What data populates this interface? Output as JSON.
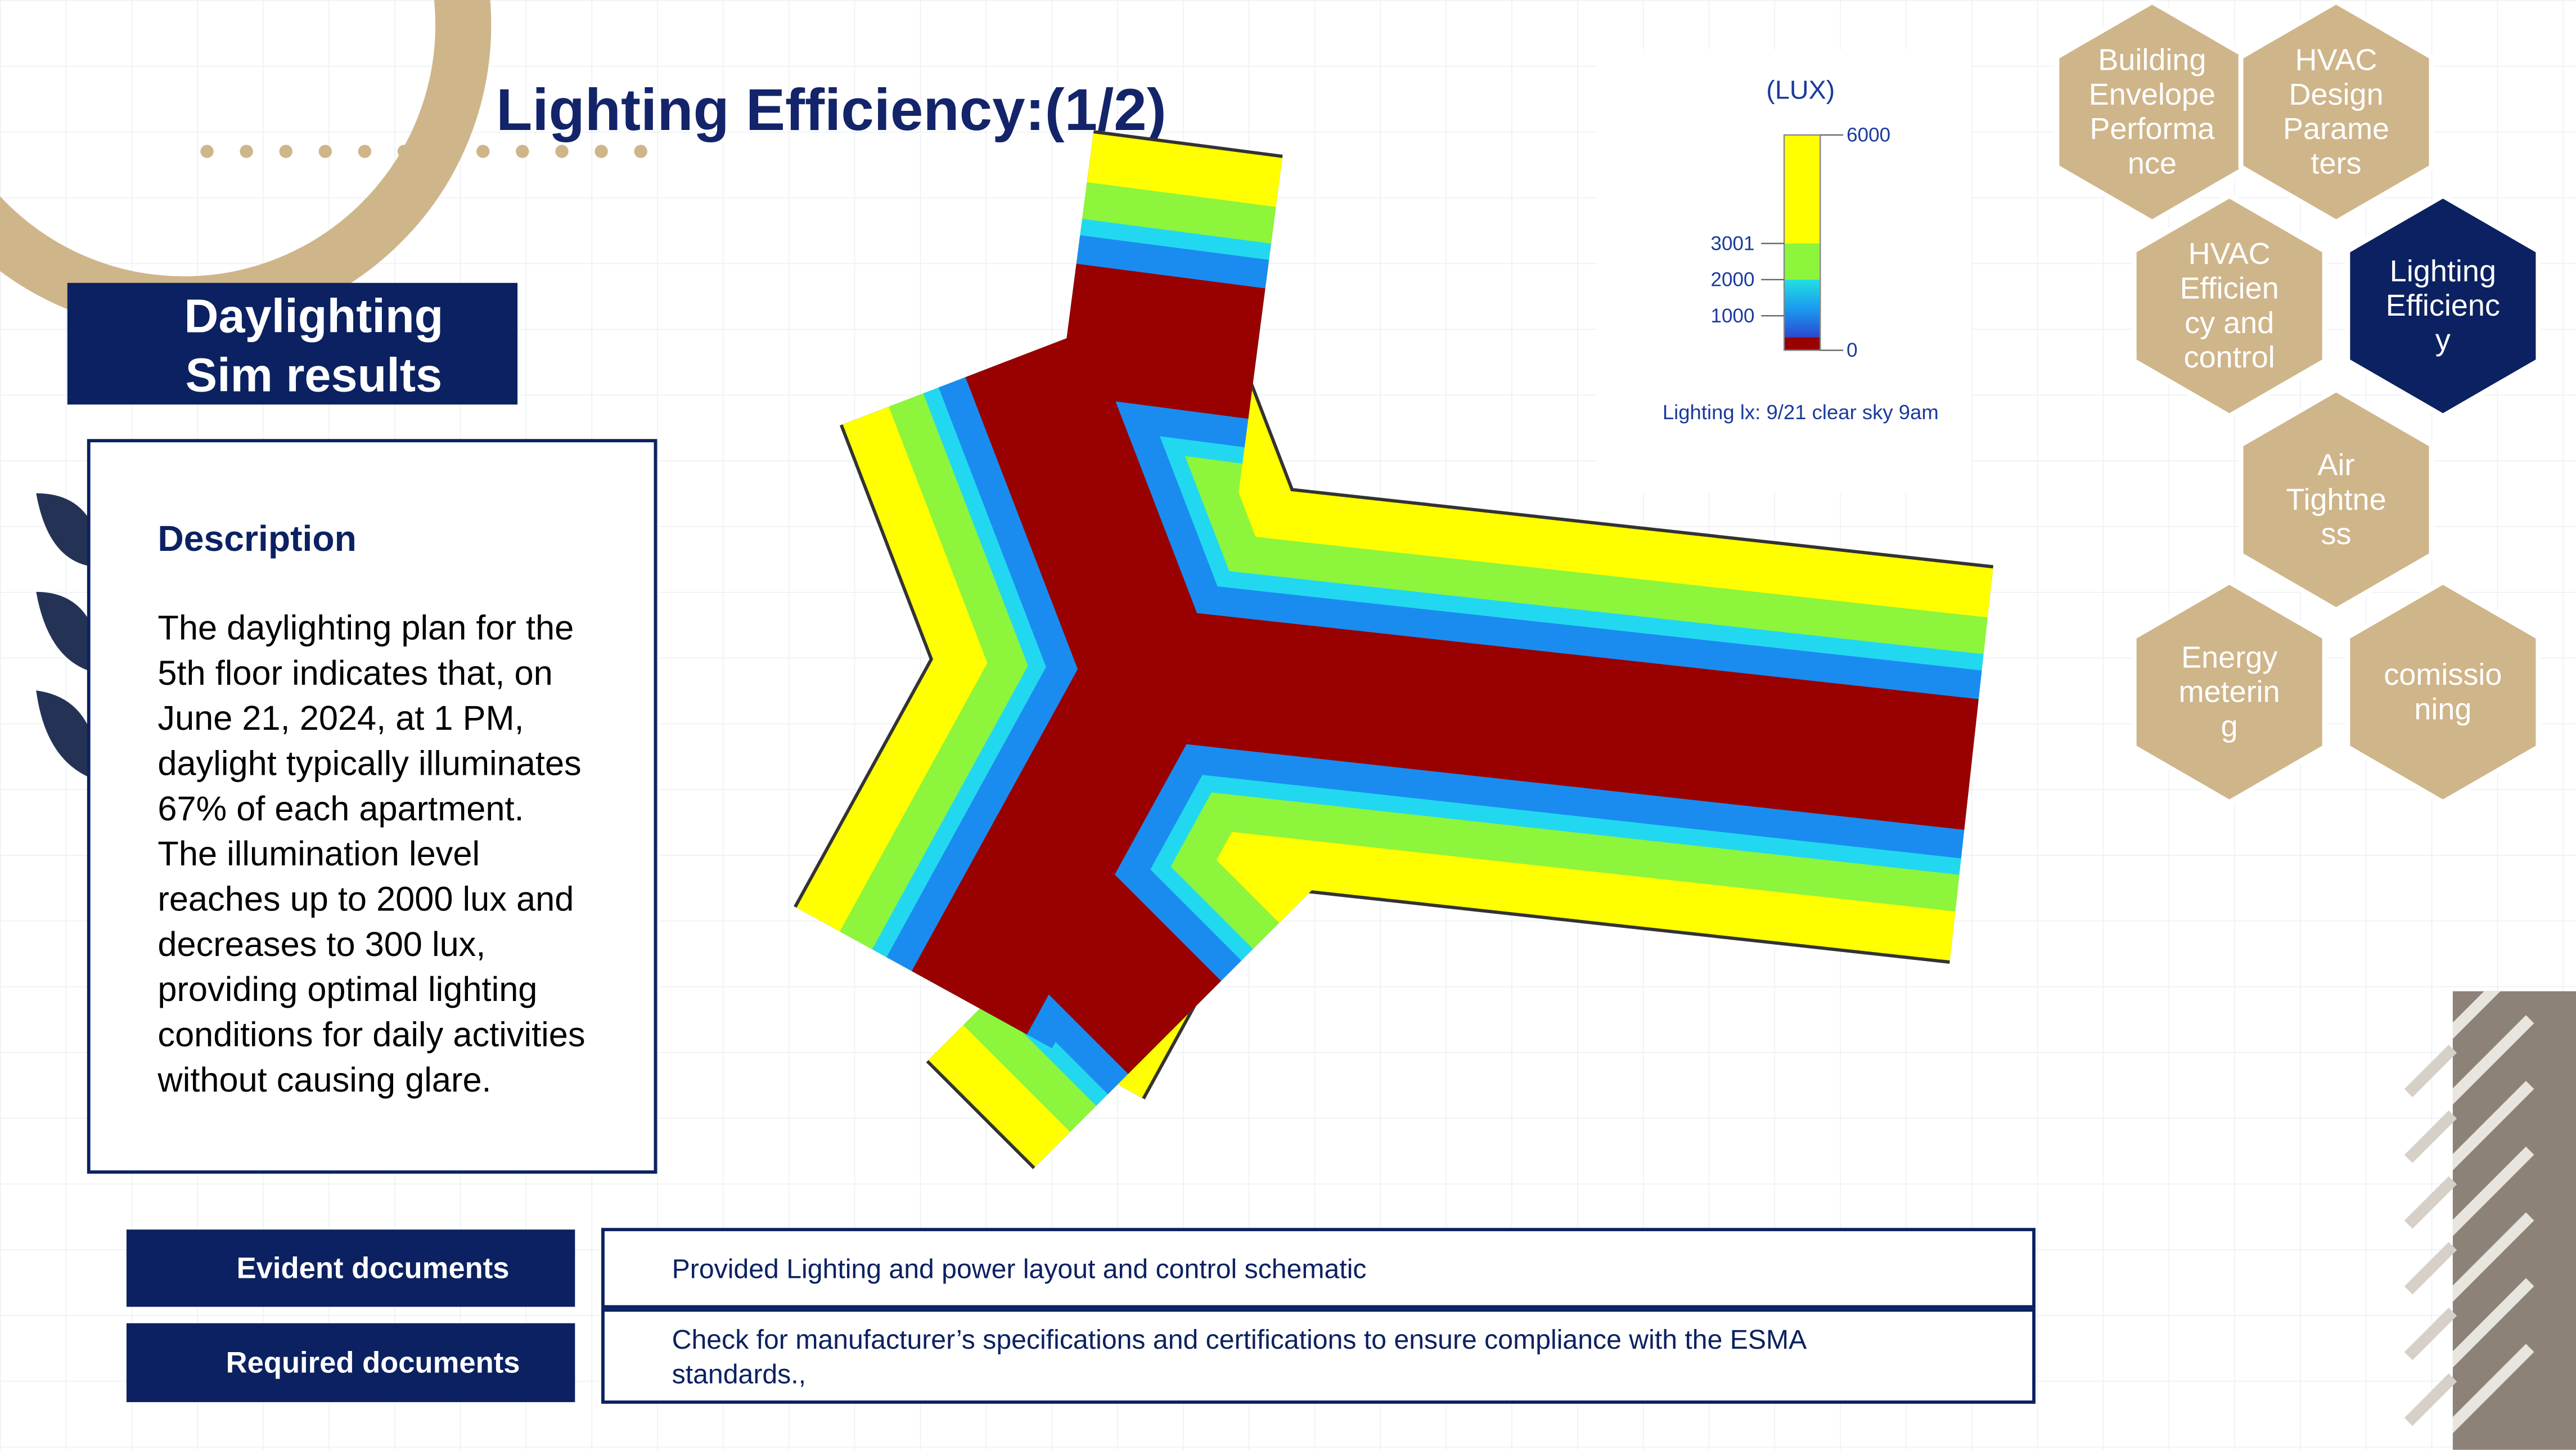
{
  "header": {
    "title": "Lighting Efficiency:(1/2)"
  },
  "section_label": [
    "Daylighting",
    "Sim results"
  ],
  "description": {
    "heading": "Description",
    "lines": [
      "The daylighting plan for the",
      "5th floor indicates that, on",
      "June 21, 2024, at 1 PM,",
      "daylight typically illuminates",
      "67% of each apartment.",
      "The illumination level",
      "reaches up to 2000 lux and",
      "decreases to 300 lux,",
      "providing optimal lighting",
      "conditions for daily activities",
      "without causing glare."
    ]
  },
  "legend": {
    "unit": "(LUX)",
    "ticks": [
      6000,
      3001,
      2000,
      1000,
      0
    ],
    "caption": "Lighting lx: 9/21 clear sky 9am"
  },
  "nav": [
    {
      "lines": [
        "Building",
        "Envelope",
        "Performa",
        "nce"
      ],
      "active": false
    },
    {
      "lines": [
        "HVAC",
        "Design",
        "Parame",
        "ters"
      ],
      "active": false
    },
    {
      "lines": [
        "HVAC",
        "Efficien",
        "cy and",
        "control"
      ],
      "active": false
    },
    {
      "lines": [
        "Lighting",
        "Efficienc",
        "y"
      ],
      "active": true
    },
    {
      "lines": [
        "Air",
        "Tightne",
        "ss"
      ],
      "active": false
    },
    {
      "lines": [
        "Energy",
        "meterin",
        "g"
      ],
      "active": false
    },
    {
      "lines": [
        "comissio",
        "ning"
      ],
      "active": false
    }
  ],
  "documents": [
    {
      "label": "Evident documents",
      "lines": [
        "Provided Lighting and power layout and control schematic"
      ]
    },
    {
      "label": "Required documents",
      "lines": [
        "Check for manufacturer’s specifications and certifications to ensure compliance with the ESMA",
        "standards.,"
      ]
    }
  ]
}
